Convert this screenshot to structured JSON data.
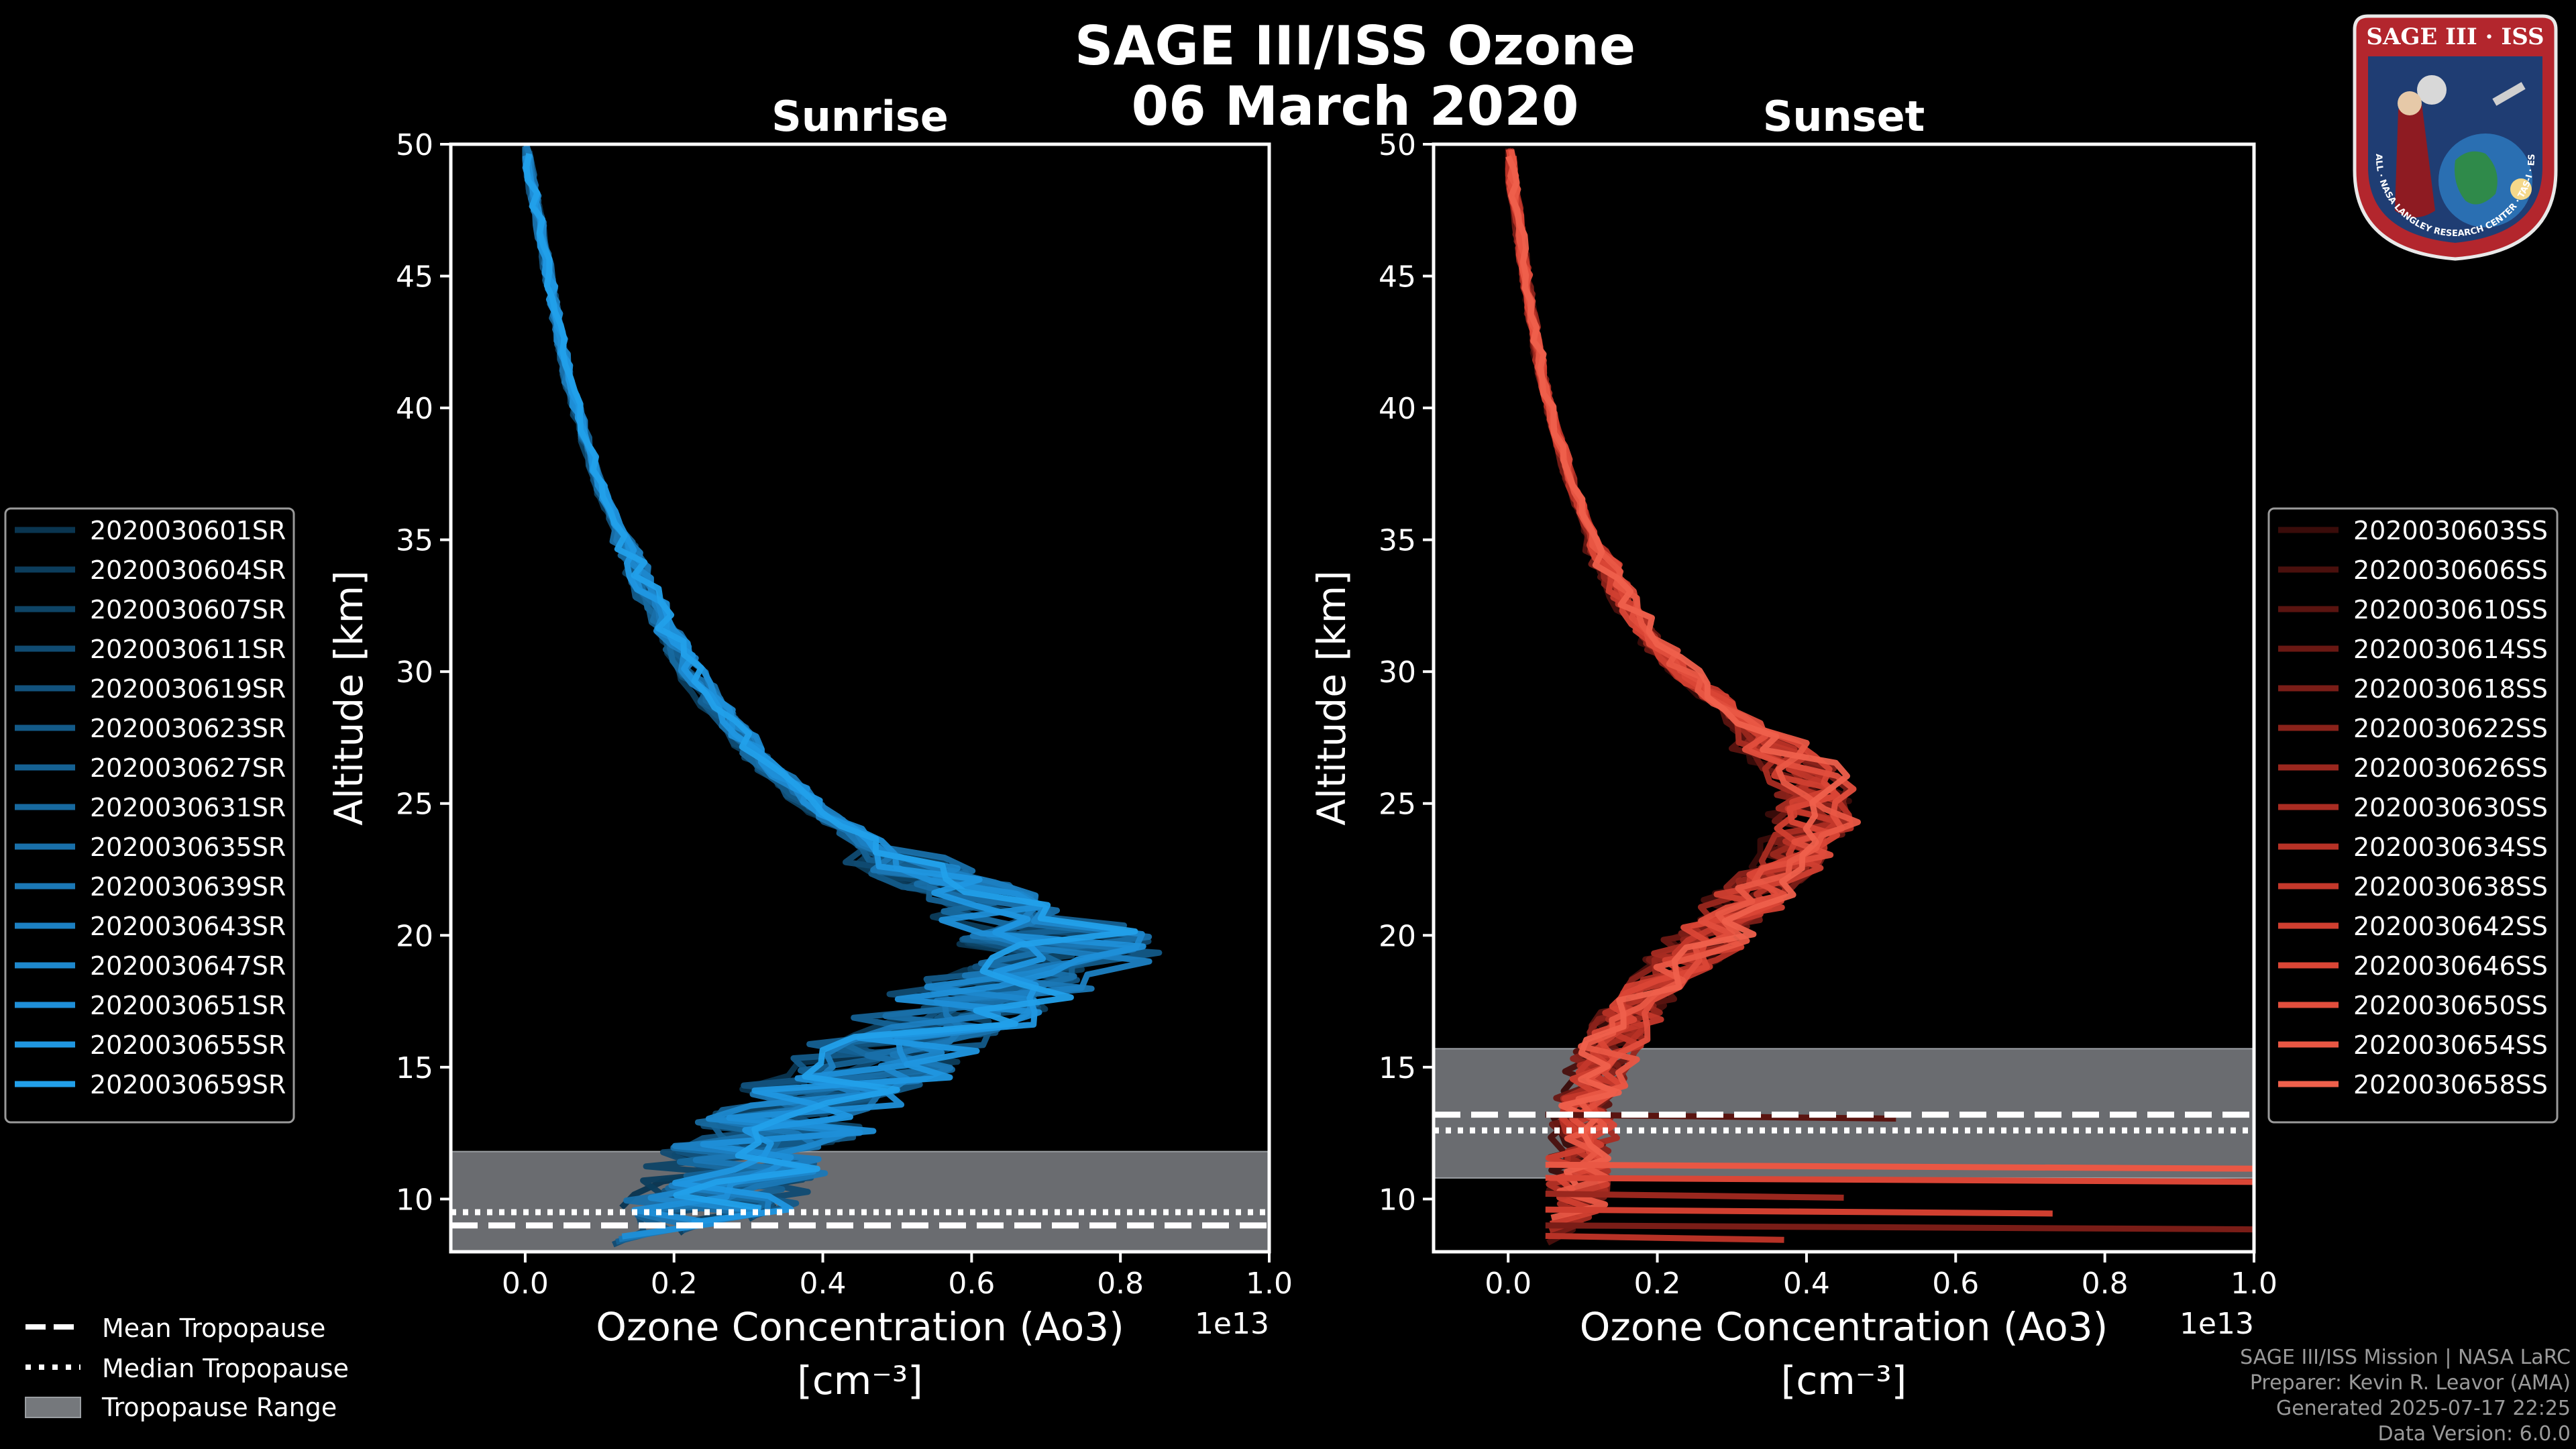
{
  "figure": {
    "title_line1": "SAGE III/ISS Ozone",
    "title_line2": "06 March 2020"
  },
  "chart_data": [
    {
      "type": "line",
      "panel": "sunrise",
      "title": "Sunrise",
      "xlabel": "Ozone Concentration (Ao3)",
      "xunit": "[cm⁻³]",
      "ylabel": "Altitude [km]",
      "xlim": [
        -1000000000000.0,
        10000000000000.0
      ],
      "ylim": [
        8,
        50
      ],
      "x_offset_label": "1e13",
      "x_ticks": [
        0,
        2000000000000.0,
        4000000000000.0,
        6000000000000.0,
        8000000000000.0,
        10000000000000.0
      ],
      "x_tick_labels": [
        "0.0",
        "0.2",
        "0.4",
        "0.6",
        "0.8",
        "1.0"
      ],
      "y_ticks": [
        10,
        15,
        20,
        25,
        30,
        35,
        40,
        45,
        50
      ],
      "y_tick_labels": [
        "10",
        "15",
        "20",
        "25",
        "30",
        "35",
        "40",
        "45",
        "50"
      ],
      "mean_tropopause": 9.0,
      "median_tropopause": 9.5,
      "tropopause_range": [
        8,
        11.8
      ],
      "series_names": [
        "2020030601SR",
        "2020030604SR",
        "2020030607SR",
        "2020030611SR",
        "2020030619SR",
        "2020030623SR",
        "2020030627SR",
        "2020030631SR",
        "2020030635SR",
        "2020030639SR",
        "2020030643SR",
        "2020030647SR",
        "2020030651SR",
        "2020030655SR",
        "2020030659SR"
      ],
      "series_colors": [
        "#0a3550",
        "#0c3d5c",
        "#0e4466",
        "#104b72",
        "#12527d",
        "#135a88",
        "#156193",
        "#17699f",
        "#1970aa",
        "#1b78b6",
        "#1c80c2",
        "#1e88cd",
        "#1f8fd8",
        "#2097e1",
        "#22a0ea"
      ],
      "reference_profile": {
        "altitude": [
          8,
          10,
          12,
          14,
          16,
          18,
          19.5,
          21,
          23,
          25,
          27,
          29,
          31,
          33,
          35,
          37,
          39,
          41,
          43,
          45,
          47,
          49,
          50
        ],
        "ozone": [
          2200000000000.0,
          2400000000000.0,
          3000000000000.0,
          3800000000000.0,
          4800000000000.0,
          6000000000000.0,
          7000000000000.0,
          6200000000000.0,
          4600000000000.0,
          3600000000000.0,
          2900000000000.0,
          2350000000000.0,
          1900000000000.0,
          1550000000000.0,
          1250000000000.0,
          950000000000.0,
          750000000000.0,
          550000000000.0,
          420000000000.0,
          300000000000.0,
          180000000000.0,
          50000000000.0,
          0
        ]
      }
    },
    {
      "type": "line",
      "panel": "sunset",
      "title": "Sunset",
      "xlabel": "Ozone Concentration (Ao3)",
      "xunit": "[cm⁻³]",
      "ylabel": "Altitude [km]",
      "xlim": [
        -1000000000000.0,
        10000000000000.0
      ],
      "ylim": [
        8,
        50
      ],
      "x_offset_label": "1e13",
      "x_ticks": [
        0,
        2000000000000.0,
        4000000000000.0,
        6000000000000.0,
        8000000000000.0,
        10000000000000.0
      ],
      "x_tick_labels": [
        "0.0",
        "0.2",
        "0.4",
        "0.6",
        "0.8",
        "1.0"
      ],
      "y_ticks": [
        10,
        15,
        20,
        25,
        30,
        35,
        40,
        45,
        50
      ],
      "y_tick_labels": [
        "10",
        "15",
        "20",
        "25",
        "30",
        "35",
        "40",
        "45",
        "50"
      ],
      "mean_tropopause": 13.2,
      "median_tropopause": 12.6,
      "tropopause_range": [
        10.8,
        15.7
      ],
      "series_names": [
        "2020030603SS",
        "2020030606SS",
        "2020030610SS",
        "2020030614SS",
        "2020030618SS",
        "2020030622SS",
        "2020030626SS",
        "2020030630SS",
        "2020030634SS",
        "2020030638SS",
        "2020030642SS",
        "2020030646SS",
        "2020030650SS",
        "2020030654SS",
        "2020030658SS"
      ],
      "series_colors": [
        "#3a0c0a",
        "#4a100d",
        "#5a1410",
        "#6a1813",
        "#7a1d17",
        "#8a221a",
        "#9a271e",
        "#a92c22",
        "#b73226",
        "#c4382b",
        "#d03f30",
        "#da4636",
        "#e24e3d",
        "#e95744",
        "#ef604c"
      ],
      "reference_profile": {
        "altitude": [
          8,
          10,
          12,
          13.5,
          15,
          16.5,
          18,
          19.5,
          21,
          22.5,
          24,
          25.3,
          26.5,
          28,
          29.5,
          31,
          33,
          35,
          37,
          39,
          41,
          43,
          45,
          47,
          49,
          50
        ],
        "ozone": [
          1000000000000.0,
          1000000000000.0,
          1100000000000.0,
          1200000000000.0,
          1300000000000.0,
          1700000000000.0,
          2200000000000.0,
          2800000000000.0,
          3400000000000.0,
          4000000000000.0,
          4500000000000.0,
          4600000000000.0,
          4200000000000.0,
          3500000000000.0,
          2800000000000.0,
          2200000000000.0,
          1650000000000.0,
          1250000000000.0,
          950000000000.0,
          720000000000.0,
          520000000000.0,
          380000000000.0,
          260000000000.0,
          150000000000.0,
          40000000000.0,
          0
        ]
      }
    }
  ],
  "legend_common": {
    "mean": "Mean Tropopause",
    "median": "Median Tropopause",
    "range": "Tropopause Range"
  },
  "credits": {
    "line1": "SAGE III/ISS Mission | NASA LaRC",
    "line2": "Preparer: Kevin R. Leavor (AMA)",
    "line3": "Generated 2025-07-17 22:25",
    "line4": "Data Version: 6.0.0"
  },
  "logo": {
    "title": "SAGE III · ISS",
    "ring_text": "BALL · NASA LANGLEY RESEARCH CENTER · TAS-I · ESA"
  },
  "colors": {
    "background": "#000000",
    "axes": "#ffffff",
    "tropopause_fill": "#75787c",
    "sunrise_accent": "#1f8fd8",
    "sunset_accent": "#e24e3d",
    "logo_ring": "#b3262d",
    "logo_field": "#1f3d73"
  }
}
